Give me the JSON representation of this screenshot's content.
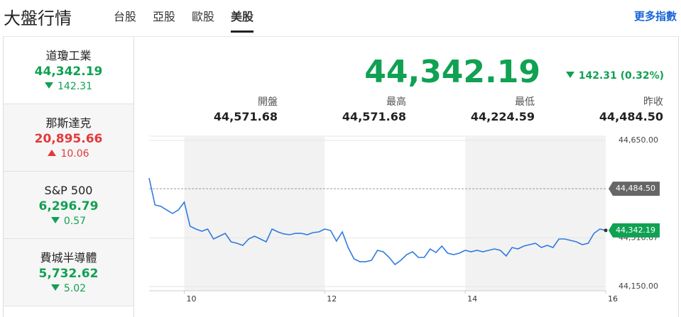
{
  "header": {
    "title": "大盤行情",
    "tabs": [
      "台股",
      "亞股",
      "歐股",
      "美股"
    ],
    "active_tab": 3,
    "more": "更多指數"
  },
  "indices": [
    {
      "name": "道瓊工業",
      "value": "44,342.19",
      "change": "142.31",
      "direction": "down"
    },
    {
      "name": "那斯達克",
      "value": "20,895.66",
      "change": "10.06",
      "direction": "up"
    },
    {
      "name": "S&P 500",
      "value": "6,296.79",
      "change": "0.57",
      "direction": "down"
    },
    {
      "name": "費城半導體",
      "value": "5,732.62",
      "change": "5.02",
      "direction": "down"
    }
  ],
  "selected_index": 0,
  "quote": {
    "value": "44,342.19",
    "change": "142.31 (0.32%)",
    "direction": "down"
  },
  "stats": [
    {
      "label": "開盤",
      "value": "44,571.68"
    },
    {
      "label": "最高",
      "value": "44,571.68"
    },
    {
      "label": "最低",
      "value": "44,224.59"
    },
    {
      "label": "昨收",
      "value": "44,484.50"
    }
  ],
  "chart_data": {
    "type": "line",
    "color": "#2f7be0",
    "x": [
      9.5,
      9.5833,
      9.6667,
      9.75,
      9.8333,
      9.9167,
      10,
      10.0833,
      10.1667,
      10.25,
      10.3333,
      10.4167,
      10.5,
      10.5833,
      10.6667,
      10.75,
      10.8333,
      10.9167,
      11,
      11.0833,
      11.1667,
      11.25,
      11.3333,
      11.4167,
      11.5,
      11.5833,
      11.6667,
      11.75,
      11.8333,
      11.9167,
      12,
      12.0833,
      12.1667,
      12.25,
      12.3333,
      12.4167,
      12.5,
      12.5833,
      12.6667,
      12.75,
      12.8333,
      12.9167,
      13,
      13.0833,
      13.1667,
      13.25,
      13.3333,
      13.4167,
      13.5,
      13.5833,
      13.6667,
      13.75,
      13.8333,
      13.9167,
      14,
      14.0833,
      14.1667,
      14.25,
      14.3333,
      14.4167,
      14.5,
      14.5833,
      14.6667,
      14.75,
      14.8333,
      14.9167,
      15,
      15.0833,
      15.1667,
      15.25,
      15.3333,
      15.4167,
      15.5,
      15.5833,
      15.6667,
      15.75,
      15.8333,
      15.9167,
      16
    ],
    "values": [
      44521.3,
      44429.1,
      44424.3,
      44412.1,
      44400,
      44412.1,
      44438.8,
      44356.3,
      44346.6,
      44339.3,
      44346.6,
      44312.6,
      44322.3,
      44332,
      44302.9,
      44298,
      44290.7,
      44312.6,
      44322.3,
      44312.6,
      44302.9,
      44346.6,
      44336.9,
      44330,
      44327.2,
      44332,
      44332,
      44327.2,
      44334.5,
      44336.9,
      44346.6,
      44341.7,
      44305.4,
      44336.9,
      44283.5,
      44244.7,
      44234.9,
      44234.9,
      44239.8,
      44273.8,
      44268.9,
      44249.5,
      44225.2,
      44239.8,
      44259.2,
      44268.9,
      44249.5,
      44249.5,
      44278.6,
      44266.5,
      44288.3,
      44264.1,
      44259.2,
      44264.1,
      44273.8,
      44268.9,
      44273.8,
      44268.9,
      44273.8,
      44278.6,
      44273.8,
      44254.4,
      44283.5,
      44278.6,
      44288.3,
      44293.2,
      44298,
      44283.5,
      44290.7,
      44283.5,
      44312.6,
      44312.6,
      44307.8,
      44302.9,
      44293.2,
      44298,
      44332,
      44346.6,
      44342.19
    ],
    "xlim": [
      9.5,
      16
    ],
    "xticks": [
      10,
      12,
      14,
      16
    ],
    "ylim": [
      44150,
      44650
    ],
    "yticks": [
      {
        "value": 44650,
        "label": "44,650.00"
      },
      {
        "value": 44316.67,
        "label": "44,316.67"
      },
      {
        "value": 44150,
        "label": "44,150.00"
      }
    ],
    "reference_value": 44484.5
  }
}
